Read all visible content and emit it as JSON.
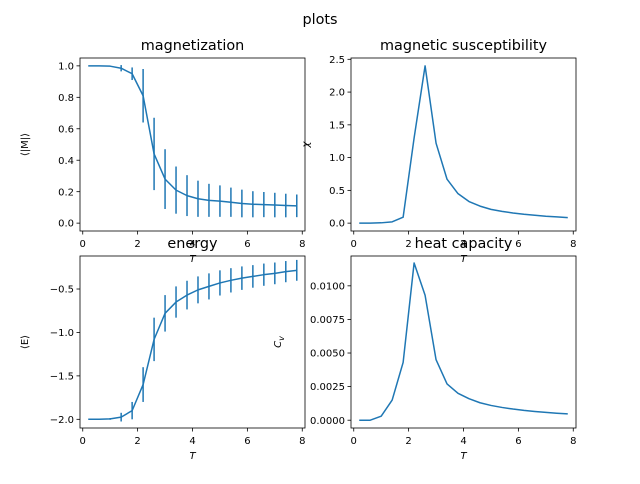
{
  "figure": {
    "title": "plots"
  },
  "colors": {
    "series": "#1f77b4",
    "axes": "#000000",
    "background": "#ffffff"
  },
  "chart_data": [
    {
      "type": "line",
      "title": "magnetization",
      "xlabel": "T",
      "ylabel": "⟨|M|⟩",
      "xlim": [
        -0.1,
        8.1
      ],
      "ylim": [
        -0.05,
        1.05
      ],
      "xticks": [
        "0",
        "2",
        "4",
        "6",
        "8"
      ],
      "xtick_values": [
        0,
        2,
        4,
        6,
        8
      ],
      "yticks": [
        "0.0",
        "0.2",
        "0.4",
        "0.6",
        "0.8",
        "1.0"
      ],
      "ytick_values": [
        0,
        0.2,
        0.4,
        0.6,
        0.8,
        1.0
      ],
      "grid": false,
      "x": [
        0.2,
        0.6,
        1.0,
        1.4,
        1.8,
        2.2,
        2.6,
        3.0,
        3.4,
        3.8,
        4.2,
        4.6,
        5.0,
        5.4,
        5.8,
        6.2,
        6.6,
        7.0,
        7.4,
        7.8
      ],
      "y": [
        1.0,
        1.0,
        0.998,
        0.985,
        0.95,
        0.81,
        0.44,
        0.28,
        0.21,
        0.175,
        0.155,
        0.145,
        0.14,
        0.133,
        0.125,
        0.12,
        0.118,
        0.115,
        0.112,
        0.11
      ],
      "yerr": [
        0,
        0,
        0,
        0.02,
        0.04,
        0.17,
        0.23,
        0.19,
        0.15,
        0.13,
        0.115,
        0.105,
        0.1,
        0.093,
        0.088,
        0.083,
        0.08,
        0.078,
        0.075,
        0.072
      ]
    },
    {
      "type": "line",
      "title": "magnetic susceptibility",
      "xlabel": "T",
      "ylabel": "χ",
      "xlim": [
        -0.1,
        8.1
      ],
      "ylim": [
        -0.12,
        2.52
      ],
      "xticks": [
        "0",
        "2",
        "4",
        "6",
        "8"
      ],
      "xtick_values": [
        0,
        2,
        4,
        6,
        8
      ],
      "yticks": [
        "0.0",
        "0.5",
        "1.0",
        "1.5",
        "2.0",
        "2.5"
      ],
      "ytick_values": [
        0,
        0.5,
        1.0,
        1.5,
        2.0,
        2.5
      ],
      "grid": false,
      "x": [
        0.2,
        0.6,
        1.0,
        1.4,
        1.8,
        2.2,
        2.6,
        3.0,
        3.4,
        3.8,
        4.2,
        4.6,
        5.0,
        5.4,
        5.8,
        6.2,
        6.6,
        7.0,
        7.4,
        7.8
      ],
      "y": [
        0.0,
        0.0,
        0.005,
        0.02,
        0.09,
        1.3,
        2.4,
        1.22,
        0.67,
        0.45,
        0.33,
        0.26,
        0.21,
        0.18,
        0.155,
        0.135,
        0.12,
        0.105,
        0.095,
        0.085
      ]
    },
    {
      "type": "line",
      "title": "energy",
      "xlabel": "T",
      "ylabel": "⟨E⟩",
      "xlim": [
        -0.1,
        8.1
      ],
      "ylim": [
        -2.1,
        -0.12
      ],
      "xticks": [
        "0",
        "2",
        "4",
        "6",
        "8"
      ],
      "xtick_values": [
        0,
        2,
        4,
        6,
        8
      ],
      "yticks": [
        "−2.0",
        "−1.5",
        "−1.0",
        "−0.5"
      ],
      "ytick_values": [
        -2.0,
        -1.5,
        -1.0,
        -0.5
      ],
      "grid": false,
      "x": [
        0.2,
        0.6,
        1.0,
        1.4,
        1.8,
        2.2,
        2.6,
        3.0,
        3.4,
        3.8,
        4.2,
        4.6,
        5.0,
        5.4,
        5.8,
        6.2,
        6.6,
        7.0,
        7.4,
        7.8
      ],
      "y": [
        -2.0,
        -2.0,
        -1.995,
        -1.975,
        -1.9,
        -1.6,
        -1.08,
        -0.78,
        -0.65,
        -0.57,
        -0.51,
        -0.47,
        -0.43,
        -0.4,
        -0.375,
        -0.355,
        -0.335,
        -0.32,
        -0.3,
        -0.285
      ],
      "yerr": [
        0,
        0,
        0.01,
        0.05,
        0.1,
        0.2,
        0.25,
        0.21,
        0.18,
        0.165,
        0.155,
        0.15,
        0.145,
        0.14,
        0.135,
        0.13,
        0.128,
        0.125,
        0.122,
        0.12
      ]
    },
    {
      "type": "line",
      "title": "heat capacity",
      "xlabel": "T",
      "ylabel": "C_v",
      "xlim": [
        -0.1,
        8.1
      ],
      "ylim": [
        -0.00058,
        0.01222
      ],
      "xticks": [
        "0",
        "2",
        "4",
        "6",
        "8"
      ],
      "xtick_values": [
        0,
        2,
        4,
        6,
        8
      ],
      "yticks": [
        "0.0000",
        "0.0025",
        "0.0050",
        "0.0075",
        "0.0100"
      ],
      "ytick_values": [
        0,
        0.0025,
        0.005,
        0.0075,
        0.01
      ],
      "grid": false,
      "x": [
        0.2,
        0.6,
        1.0,
        1.4,
        1.8,
        2.2,
        2.6,
        3.0,
        3.4,
        3.8,
        4.2,
        4.6,
        5.0,
        5.4,
        5.8,
        6.2,
        6.6,
        7.0,
        7.4,
        7.8
      ],
      "y": [
        0.0,
        0.0,
        0.0003,
        0.0015,
        0.0043,
        0.0117,
        0.0093,
        0.0045,
        0.0027,
        0.002,
        0.0016,
        0.0013,
        0.0011,
        0.00095,
        0.00083,
        0.00073,
        0.00065,
        0.00058,
        0.00052,
        0.00047
      ]
    }
  ]
}
